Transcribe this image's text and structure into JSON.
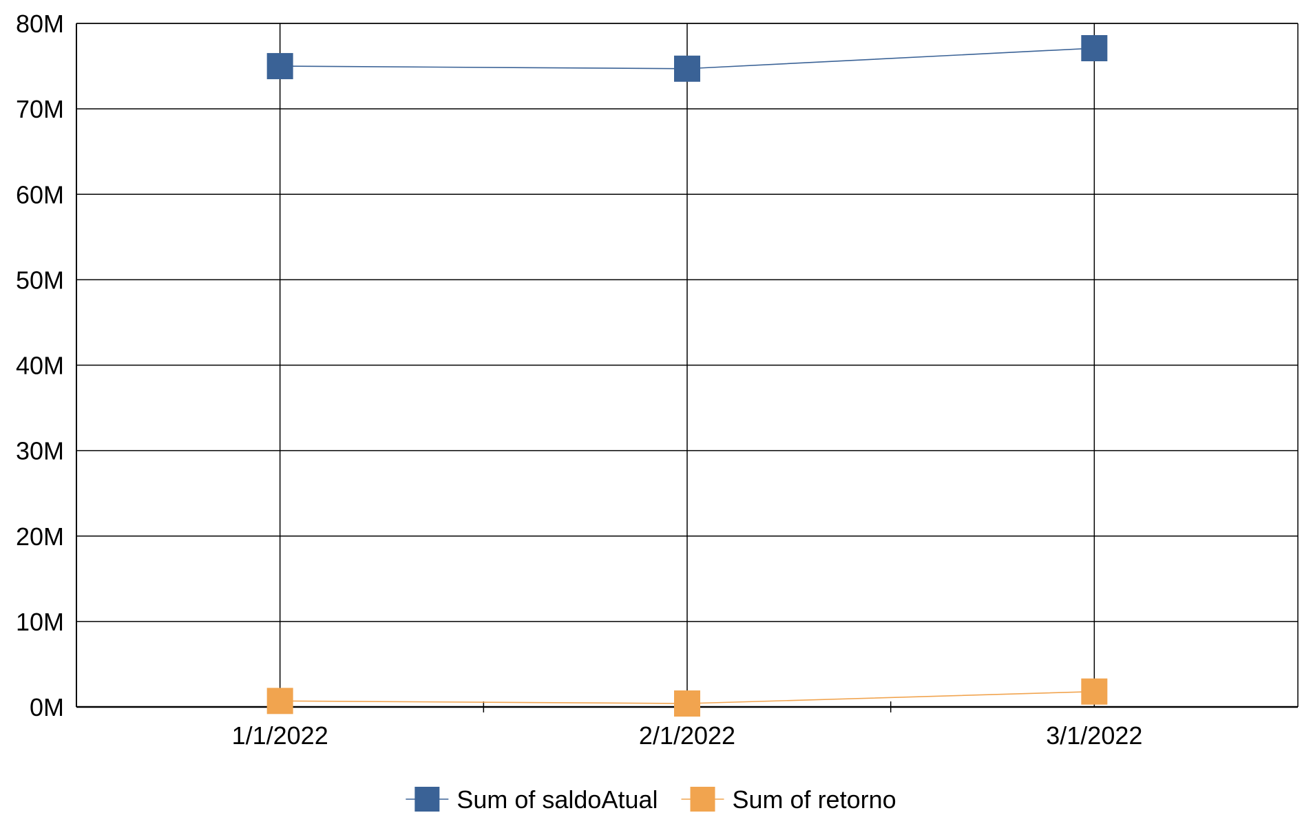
{
  "chart_data": {
    "type": "line",
    "x": [
      "1/1/2022",
      "2/1/2022",
      "3/1/2022"
    ],
    "series": [
      {
        "name": "Sum of saldoAtual",
        "values": [
          75000000,
          74700000,
          77100000
        ],
        "color": "#3a6296"
      },
      {
        "name": "Sum of retorno",
        "values": [
          700000,
          400000,
          1800000
        ],
        "color": "#f1a44f"
      }
    ],
    "ylim": [
      0,
      80000000
    ],
    "yticks": [
      0,
      10000000,
      20000000,
      30000000,
      40000000,
      50000000,
      60000000,
      70000000,
      80000000
    ],
    "ytick_labels": [
      "0M",
      "10M",
      "20M",
      "30M",
      "40M",
      "50M",
      "60M",
      "70M",
      "80M"
    ],
    "grid": true,
    "marker": "square",
    "legend_position": "bottom"
  }
}
